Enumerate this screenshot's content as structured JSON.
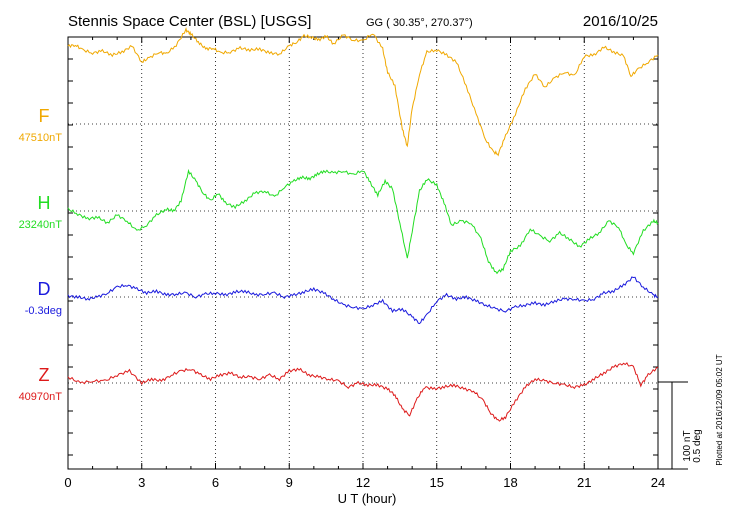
{
  "header": {
    "station": "Stennis Space Center (BSL)  [USGS]",
    "coords": "GG ( 30.35°, 270.37°)",
    "date": "2016/10/25"
  },
  "chart_data": {
    "type": "line",
    "xlabel": "U T (hour)",
    "xlim": [
      0,
      24
    ],
    "xticks": [
      "0",
      "3",
      "6",
      "9",
      "12",
      "15",
      "18",
      "21",
      "24"
    ],
    "scale_bar": {
      "label1": "100 nT",
      "label2": "0.5 deg"
    },
    "plotted_note": "Plotted at 2016/12/09 05:02 UT",
    "series": [
      {
        "name": "F",
        "baseline_label": "47510nT",
        "color": "#f0a800",
        "x": [
          0,
          0.3,
          0.6,
          1.0,
          1.4,
          1.8,
          2.2,
          2.6,
          3.0,
          3.3,
          3.7,
          4.0,
          4.4,
          4.8,
          5.0,
          5.3,
          5.6,
          5.9,
          6.2,
          6.6,
          7.0,
          7.4,
          7.8,
          8.2,
          8.6,
          9.0,
          9.3,
          9.6,
          9.9,
          10.2,
          10.5,
          10.8,
          11.2,
          11.6,
          12.0,
          12.4,
          12.8,
          13.0,
          13.3,
          13.6,
          13.8,
          14.0,
          14.3,
          14.6,
          15.0,
          15.4,
          15.8,
          16.2,
          16.6,
          17.0,
          17.3,
          17.5,
          17.8,
          18.2,
          18.6,
          19.0,
          19.4,
          19.8,
          20.2,
          20.6,
          21.0,
          21.4,
          21.8,
          22.2,
          22.6,
          22.9,
          23.2,
          23.6,
          24.0
        ],
        "y": [
          78,
          79,
          74,
          71,
          73,
          69,
          72,
          78,
          62,
          66,
          72,
          70,
          79,
          94,
          90,
          82,
          75,
          76,
          71,
          72,
          76,
          74,
          75,
          71,
          70,
          78,
          82,
          88,
          87,
          84,
          88,
          80,
          89,
          84,
          83,
          91,
          75,
          52,
          38,
          -5,
          -22,
          15,
          50,
          72,
          74,
          69,
          62,
          38,
          10,
          -16,
          -28,
          -30,
          -12,
          10,
          35,
          50,
          37,
          46,
          52,
          48,
          68,
          69,
          77,
          72,
          68,
          48,
          55,
          62,
          69
        ]
      },
      {
        "name": "H",
        "baseline_label": "23240nT",
        "color": "#22dd22",
        "x": [
          0,
          0.4,
          0.8,
          1.2,
          1.6,
          2.0,
          2.4,
          2.8,
          3.2,
          3.6,
          4.0,
          4.3,
          4.6,
          4.9,
          5.2,
          5.5,
          5.8,
          6.1,
          6.4,
          6.8,
          7.2,
          7.6,
          8.0,
          8.4,
          8.8,
          9.2,
          9.5,
          9.8,
          10.1,
          10.4,
          10.8,
          11.2,
          11.6,
          12.0,
          12.3,
          12.6,
          12.9,
          13.2,
          13.5,
          13.8,
          14.0,
          14.3,
          14.6,
          15.0,
          15.3,
          15.6,
          16.0,
          16.4,
          16.8,
          17.1,
          17.4,
          17.7,
          18.0,
          18.4,
          18.8,
          19.2,
          19.6,
          20.0,
          20.4,
          20.8,
          21.2,
          21.6,
          22.0,
          22.4,
          22.7,
          23.0,
          23.4,
          23.8,
          24.0
        ],
        "y": [
          2,
          -3,
          -8,
          -6,
          -12,
          -4,
          -10,
          -20,
          -14,
          -4,
          2,
          0,
          10,
          40,
          30,
          18,
          10,
          18,
          8,
          4,
          10,
          18,
          20,
          14,
          24,
          30,
          34,
          32,
          36,
          40,
          38,
          40,
          36,
          41,
          28,
          16,
          30,
          22,
          -12,
          -48,
          -20,
          20,
          32,
          26,
          8,
          -14,
          -10,
          -12,
          -28,
          -50,
          -62,
          -58,
          -40,
          -35,
          -18,
          -25,
          -30,
          -22,
          -28,
          -36,
          -28,
          -22,
          -10,
          -16,
          -34,
          -42,
          -20,
          -10,
          -12
        ]
      },
      {
        "name": "D",
        "baseline_label": "-0.3deg",
        "color": "#1a1add",
        "x": [
          0,
          0.4,
          0.8,
          1.2,
          1.6,
          2.0,
          2.4,
          2.8,
          3.2,
          3.6,
          4.0,
          4.4,
          4.8,
          5.2,
          5.6,
          6.0,
          6.4,
          6.8,
          7.2,
          7.6,
          8.0,
          8.4,
          8.8,
          9.2,
          9.6,
          10.0,
          10.4,
          10.8,
          11.2,
          11.6,
          12.0,
          12.4,
          12.8,
          13.2,
          13.6,
          14.0,
          14.3,
          14.6,
          15.0,
          15.4,
          15.8,
          16.2,
          16.6,
          17.0,
          17.4,
          17.8,
          18.2,
          18.6,
          19.0,
          19.4,
          19.8,
          20.2,
          20.6,
          21.0,
          21.4,
          21.8,
          22.2,
          22.6,
          23.0,
          23.4,
          23.8,
          24.0
        ],
        "y": [
          1,
          0,
          -2,
          0,
          4,
          10,
          12,
          8,
          4,
          6,
          2,
          3,
          4,
          0,
          3,
          4,
          2,
          5,
          6,
          2,
          3,
          4,
          0,
          2,
          5,
          8,
          4,
          -2,
          -8,
          -10,
          -12,
          -8,
          -4,
          -14,
          -12,
          -20,
          -26,
          -18,
          -4,
          2,
          -2,
          0,
          -4,
          -8,
          -12,
          -14,
          -10,
          -8,
          -6,
          -8,
          -4,
          -2,
          -2,
          -4,
          -2,
          4,
          6,
          12,
          20,
          10,
          2,
          0
        ]
      },
      {
        "name": "Z",
        "baseline_label": "40970nT",
        "color": "#dd1a1a",
        "x": [
          0,
          0.5,
          1.0,
          1.5,
          2.0,
          2.5,
          3.0,
          3.4,
          3.8,
          4.2,
          4.6,
          5.0,
          5.4,
          5.8,
          6.2,
          6.6,
          7.0,
          7.4,
          7.8,
          8.2,
          8.6,
          9.0,
          9.4,
          9.8,
          10.2,
          10.6,
          11.0,
          11.4,
          11.8,
          12.2,
          12.6,
          13.0,
          13.3,
          13.6,
          13.9,
          14.2,
          14.5,
          14.9,
          15.3,
          15.7,
          16.1,
          16.5,
          16.9,
          17.2,
          17.5,
          17.8,
          18.2,
          18.6,
          19.0,
          19.4,
          19.8,
          20.2,
          20.6,
          21.0,
          21.4,
          21.8,
          22.2,
          22.6,
          23.0,
          23.3,
          23.6,
          24.0
        ],
        "y": [
          6,
          0,
          2,
          2,
          8,
          12,
          0,
          4,
          2,
          8,
          12,
          14,
          8,
          4,
          8,
          10,
          6,
          6,
          4,
          8,
          4,
          12,
          14,
          8,
          6,
          4,
          2,
          -4,
          0,
          -2,
          -2,
          -6,
          -12,
          -26,
          -32,
          -16,
          -4,
          -6,
          -4,
          -2,
          -6,
          -8,
          -18,
          -30,
          -38,
          -34,
          -18,
          -4,
          4,
          2,
          0,
          -2,
          -4,
          -2,
          4,
          10,
          16,
          20,
          16,
          -2,
          8,
          16
        ]
      }
    ]
  }
}
